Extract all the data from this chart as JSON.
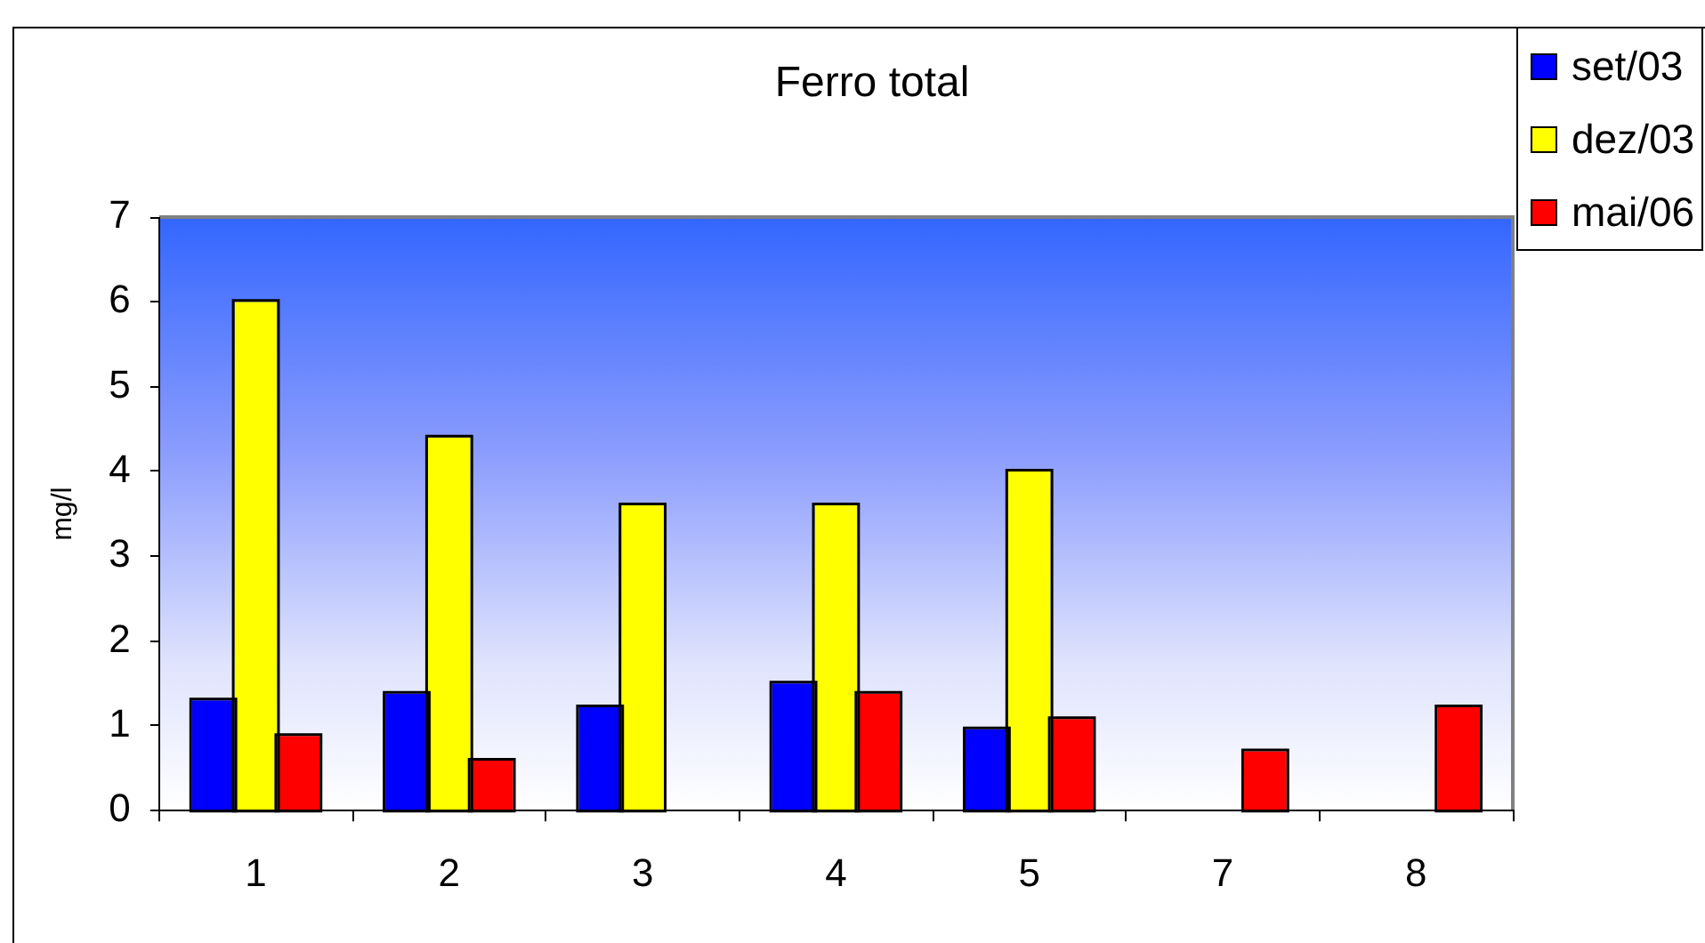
{
  "chart_data": {
    "type": "bar",
    "title": "Ferro total",
    "ylabel": "mg/l",
    "categories": [
      "1",
      "2",
      "3",
      "4",
      "5",
      "7",
      "8"
    ],
    "series": [
      {
        "name": "set/03",
        "color": "#0000ff",
        "values": [
          1.3,
          1.38,
          1.22,
          1.5,
          0.96,
          null,
          null
        ]
      },
      {
        "name": "dez/03",
        "color": "#ffff00",
        "values": [
          6.0,
          4.4,
          3.6,
          3.6,
          4.0,
          null,
          null
        ]
      },
      {
        "name": "mai/06",
        "color": "#ff0000",
        "values": [
          0.88,
          0.59,
          null,
          1.38,
          1.08,
          0.7,
          1.22
        ]
      }
    ],
    "ylim": [
      0,
      7
    ],
    "yticks": [
      0,
      1,
      2,
      3,
      4,
      5,
      6,
      7
    ],
    "grid": false,
    "legend": "top right"
  }
}
